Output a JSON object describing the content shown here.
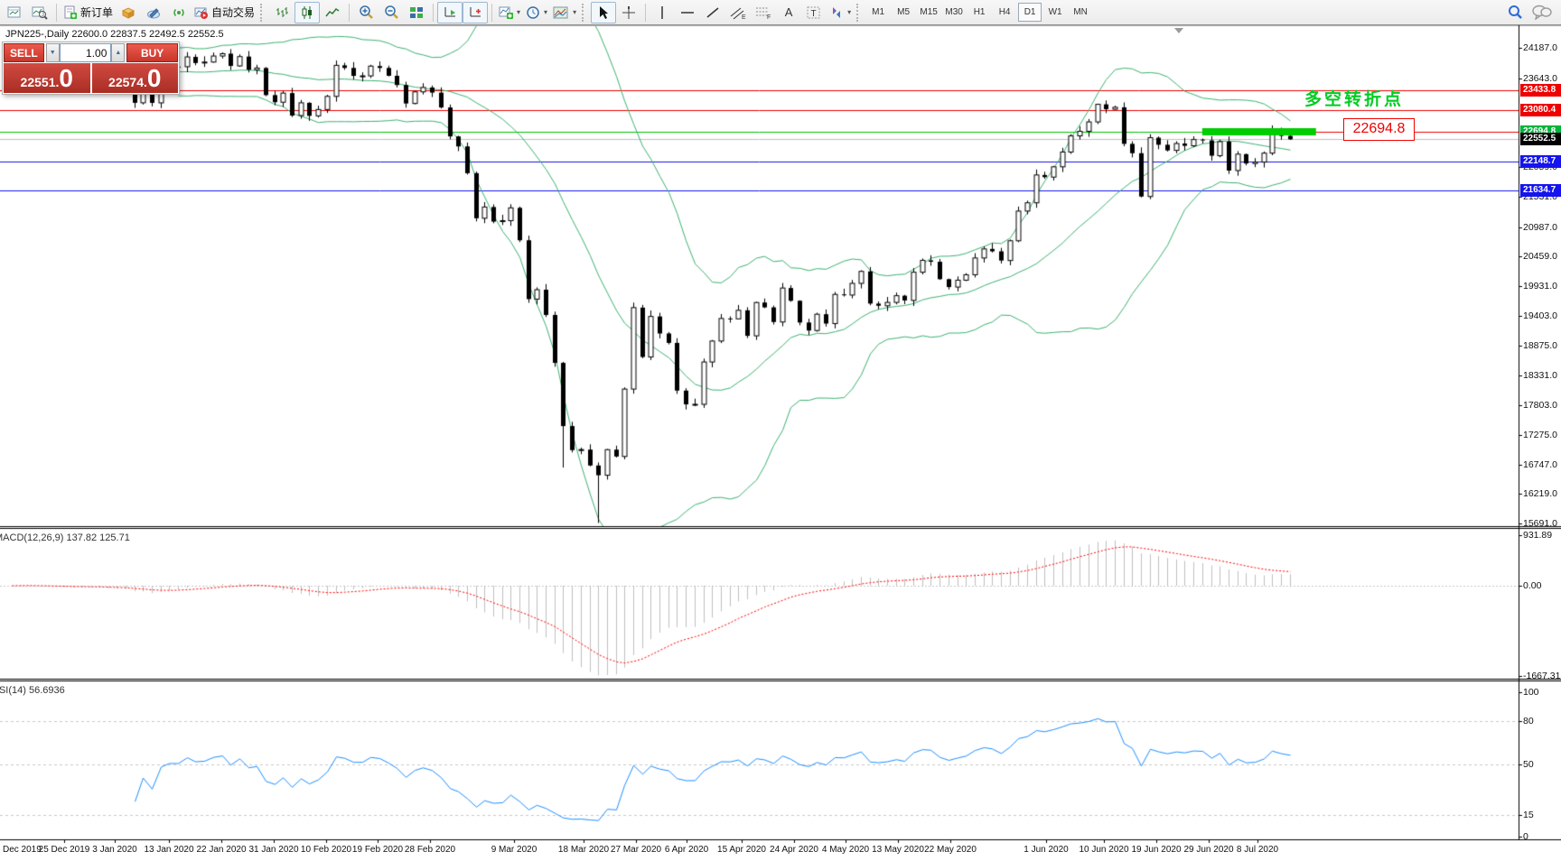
{
  "toolbar": {
    "new_order_label": "新订单",
    "autotrade_label": "自动交易",
    "timeframes": [
      "M1",
      "M5",
      "M15",
      "M30",
      "H1",
      "H4",
      "D1",
      "W1",
      "MN"
    ],
    "active_timeframe": "D1",
    "text_tool_label": "A"
  },
  "trade_panel": {
    "sell_label": "SELL",
    "buy_label": "BUY",
    "volume": "1.00",
    "sell_price": "22551.",
    "sell_price_big": "0",
    "buy_price": "22574.",
    "buy_price_big": "0"
  },
  "chart": {
    "title": "JPN225-,Daily  22600.0 22837.5 22492.5 22552.5"
  },
  "macd_panel": {
    "label": "MACD(12,26,9) 137.82 125.71",
    "ticks": [
      "931.89",
      "0.00",
      "-1667.31"
    ]
  },
  "rsi_panel": {
    "label": "RSI(14) 56.6936",
    "ticks": [
      "100",
      "80",
      "50",
      "15",
      "0"
    ]
  },
  "chart_data": {
    "type": "candlestick",
    "symbol": "JPN225-",
    "timeframe": "Daily",
    "ohlc_current": {
      "open": 22600.0,
      "high": 22837.5,
      "low": 22492.5,
      "close": 22552.5
    },
    "y_axis_ticks": [
      "24187.0",
      "23643.0",
      "22059.0",
      "21531.0",
      "20987.0",
      "20459.0",
      "19931.0",
      "19403.0",
      "18875.0",
      "18331.0",
      "17803.0",
      "17275.0",
      "16747.0",
      "16219.0",
      "15691.0"
    ],
    "x_dates": [
      "Dec 2019",
      "25 Dec 2019",
      "3 Jan 2020",
      "13 Jan 2020",
      "22 Jan 2020",
      "31 Jan 2020",
      "10 Feb 2020",
      "19 Feb 2020",
      "28 Feb 2020",
      "9 Mar 2020",
      "18 Mar 2020",
      "27 Mar 2020",
      "6 Apr 2020",
      "15 Apr 2020",
      "24 Apr 2020",
      "4 May 2020",
      "13 May 2020",
      "22 May 2020",
      "1 Jun 2020",
      "10 Jun 2020",
      "19 Jun 2020",
      "29 Jun 2020",
      "8 Jul 2020"
    ],
    "closes": [
      23952,
      24066,
      23934,
      23864,
      23817,
      23821,
      23830,
      23783,
      23924,
      23838,
      23837,
      23657,
      23740,
      23657,
      23205,
      23575,
      23204,
      23740,
      23851,
      23850,
      24025,
      23916,
      23933,
      24041,
      24083,
      23864,
      24031,
      23795,
      23827,
      23343,
      23216,
      23379,
      22977,
      23205,
      22972,
      23085,
      23320,
      23874,
      23828,
      23686,
      23686,
      23861,
      23828,
      23688,
      23523,
      23193,
      23401,
      23479,
      23387,
      23122,
      22605,
      22426,
      21948,
      21143,
      21344,
      21083,
      21100,
      21329,
      20750,
      19699,
      19867,
      19416,
      18560,
      17431,
      17002,
      17011,
      16727,
      16553,
      17010,
      16888,
      18092,
      19547,
      18665,
      19389,
      19085,
      18917,
      18065,
      17819,
      17820,
      18576,
      18950,
      19353,
      19346,
      19499,
      19043,
      19638,
      19551,
      19290,
      19897,
      19669,
      19281,
      19138,
      19429,
      19262,
      19783,
      19771,
      19980,
      20194,
      19619,
      19580,
      19640,
      19760,
      19675,
      20179,
      20391,
      20366,
      20055,
      19914,
      20037,
      20134,
      20433,
      20595,
      20552,
      20388,
      20741,
      21271,
      21419,
      21916,
      21878,
      22062,
      22326,
      22614,
      22696,
      22864,
      23178,
      23091,
      23125,
      22472,
      22305,
      21531,
      22582,
      22456,
      22355,
      22478,
      22437,
      22549,
      22534,
      22260,
      22512,
      21995,
      22288,
      22121,
      22146,
      22306,
      22714,
      22614,
      22552.5
    ],
    "wick_overrides": [
      {
        "index": 63,
        "low": 16690
      },
      {
        "index": 67,
        "low": 15700
      }
    ],
    "levels": [
      {
        "label": "23433.8",
        "price": 23433.8,
        "color": "#ee0000"
      },
      {
        "label": "23080.4",
        "price": 23080.4,
        "color": "#ee0000"
      },
      {
        "label": "22694.8",
        "price": 22694.8,
        "color": "#00c400",
        "badge": "#00b43c"
      },
      {
        "label": "22552.5",
        "price": 22552.5,
        "color": "#c0c0c0",
        "badge": "#000000",
        "current": true
      },
      {
        "label": "22148.7",
        "price": 22148.7,
        "color": "#1414ee"
      },
      {
        "label": "21634.7",
        "price": 21634.7,
        "color": "#1414ee"
      }
    ],
    "highlight": {
      "price": 22694.8,
      "from_bar": 136,
      "to_bar": 149,
      "color": "#00cc00"
    },
    "callout": {
      "text": "22694.8",
      "color": "#ee0000"
    },
    "annotation": {
      "text": "多空转折点",
      "color": "#00cc22"
    },
    "indicators": [
      {
        "name": "Bollinger Bands",
        "period": 20,
        "deviation": 2,
        "color": "#3cb371"
      },
      {
        "name": "MACD",
        "fast": 12,
        "slow": 26,
        "signal": 9,
        "values": [
          137.82,
          125.71
        ],
        "hist_color": "#c0c0c0",
        "signal_color": "#ff0000"
      },
      {
        "name": "RSI",
        "period": 14,
        "value": 56.6936,
        "color": "#1e90ff",
        "grid_levels": [
          80,
          50,
          15
        ]
      }
    ]
  }
}
